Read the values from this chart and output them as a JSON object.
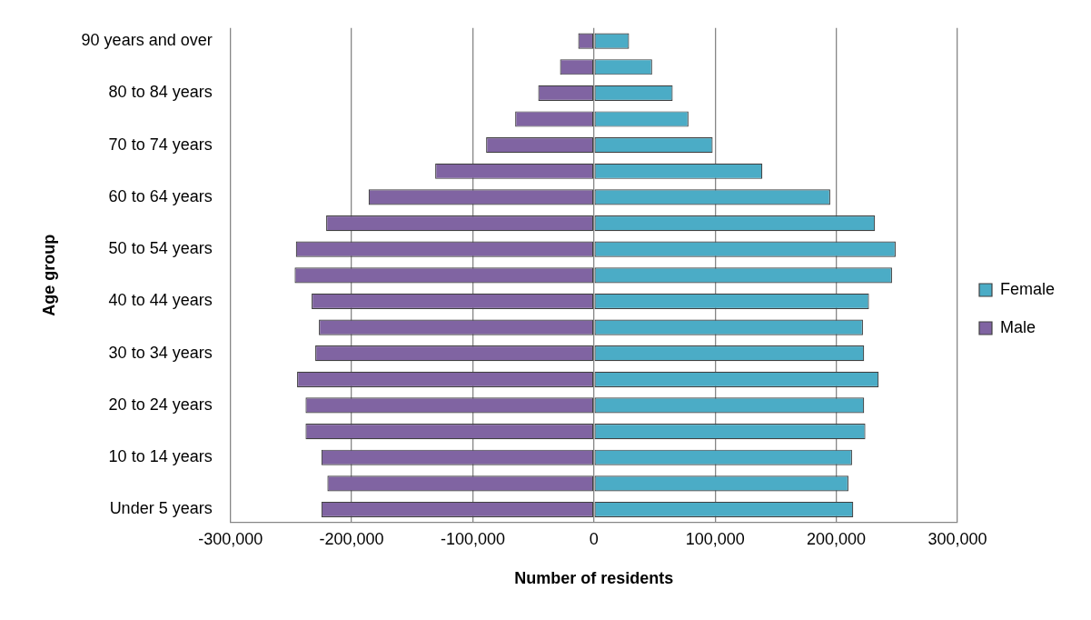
{
  "chart_data": {
    "type": "bar",
    "orientation": "horizontal",
    "stacked": true,
    "xlabel": "Number of residents",
    "ylabel": "Age group",
    "categories": [
      "90 years and over",
      null,
      "80 to 84 years",
      null,
      "70 to 74 years",
      null,
      "60 to 64 years",
      null,
      "50 to 54 years",
      null,
      "40 to 44 years",
      null,
      "30 to 34 years",
      null,
      "20 to 24 years",
      null,
      "10 to 14 years",
      null,
      "Under 5 years"
    ],
    "series": [
      {
        "name": "Female",
        "color": "#4bacc6",
        "values": [
          29000,
          48000,
          65000,
          78000,
          98000,
          139000,
          195000,
          232000,
          249000,
          246000,
          227000,
          222000,
          223000,
          235000,
          223000,
          224000,
          213000,
          210000,
          214000
        ]
      },
      {
        "name": "Male",
        "color": "#8064a2",
        "values": [
          -13000,
          -28000,
          -46000,
          -65000,
          -89000,
          -131000,
          -186000,
          -221000,
          -246000,
          -247000,
          -233000,
          -227000,
          -230000,
          -245000,
          -238000,
          -238000,
          -225000,
          -220000,
          -225000
        ]
      }
    ],
    "xlim": [
      -300000,
      300000
    ],
    "xticks": [
      {
        "value": -300000,
        "label": "-300,000"
      },
      {
        "value": -200000,
        "label": "-200,000"
      },
      {
        "value": -100000,
        "label": "-100,000"
      },
      0,
      {
        "value": 100000,
        "label": "100,000"
      },
      {
        "value": 200000,
        "label": "200,000"
      },
      {
        "value": 300000,
        "label": "300,000"
      }
    ],
    "grid": "x",
    "legend": "right"
  }
}
